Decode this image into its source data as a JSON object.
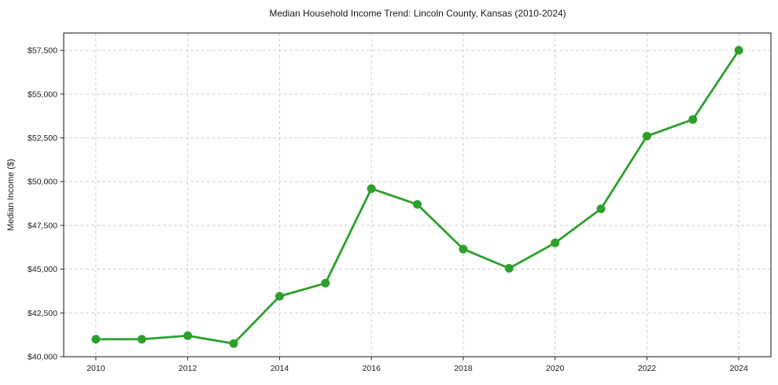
{
  "chart_data": {
    "type": "line",
    "title": "Median Household Income Trend: Lincoln County, Kansas (2010-2024)",
    "xlabel": "",
    "ylabel": "Median Income ($)",
    "x": [
      2010,
      2011,
      2012,
      2013,
      2014,
      2015,
      2016,
      2017,
      2018,
      2019,
      2020,
      2021,
      2022,
      2023,
      2024
    ],
    "values": [
      41000,
      41000,
      41200,
      40750,
      43450,
      44200,
      49600,
      48700,
      46150,
      45050,
      46500,
      48450,
      52600,
      53550,
      57500
    ],
    "series_name": "Median Household Income",
    "x_ticks": [
      2010,
      2012,
      2014,
      2016,
      2018,
      2020,
      2022,
      2024
    ],
    "x_tick_labels": [
      "2010",
      "2012",
      "2014",
      "2016",
      "2018",
      "2020",
      "2022",
      "2024"
    ],
    "y_ticks": [
      40000,
      42500,
      45000,
      47500,
      50000,
      52500,
      55000,
      57500
    ],
    "y_tick_labels": [
      "$40,000",
      "$42,500",
      "$45,000",
      "$47,500",
      "$50,000",
      "$52,500",
      "$55,000",
      "$57,500"
    ],
    "xlim": [
      2009.3,
      2024.7
    ],
    "ylim": [
      40000,
      58490
    ],
    "grid": true,
    "grid_style": "dashed",
    "legend": "none",
    "line_color": "#2ca02c",
    "marker": "circle",
    "grid_color": "#cccccc",
    "axis_color": "#262626",
    "background_color": "#ffffff"
  }
}
